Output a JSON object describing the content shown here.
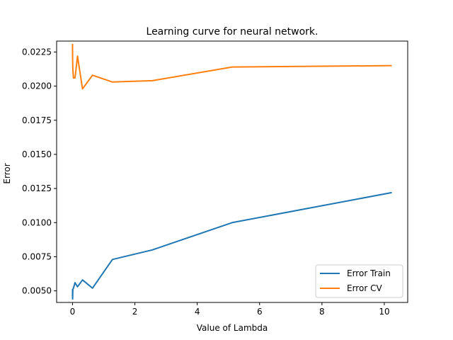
{
  "chart_data": {
    "type": "line",
    "title": "Learning curve for neural network.",
    "xlabel": "Value of Lambda",
    "ylabel": "Error",
    "xlim": [
      -0.51,
      10.75
    ],
    "ylim": [
      0.00415,
      0.0233
    ],
    "xticks": [
      0,
      2,
      4,
      6,
      8,
      10
    ],
    "xtick_labels": [
      "0",
      "2",
      "4",
      "6",
      "8",
      "10"
    ],
    "yticks": [
      0.005,
      0.0075,
      0.01,
      0.0125,
      0.015,
      0.0175,
      0.02,
      0.0225
    ],
    "ytick_labels": [
      "0.0050",
      "0.0075",
      "0.0100",
      "0.0125",
      "0.0150",
      "0.0175",
      "0.0200",
      "0.0225"
    ],
    "grid": false,
    "legend_position": "lower-right",
    "series": [
      {
        "name": "Error Train",
        "color": "#1f77b4",
        "x": [
          0,
          0.001,
          0.003,
          0.01,
          0.03,
          0.08,
          0.16,
          0.32,
          0.64,
          1.28,
          2.56,
          5.12,
          10.24
        ],
        "y": [
          0.0045,
          0.0051,
          0.0044,
          0.0051,
          0.0052,
          0.0056,
          0.0053,
          0.0058,
          0.0052,
          0.0073,
          0.008,
          0.01,
          0.0122
        ]
      },
      {
        "name": "Error CV",
        "color": "#ff7f0e",
        "x": [
          0,
          0.001,
          0.003,
          0.01,
          0.03,
          0.08,
          0.16,
          0.32,
          0.64,
          1.28,
          2.56,
          5.12,
          10.24
        ],
        "y": [
          0.0231,
          0.0226,
          0.0219,
          0.0213,
          0.0206,
          0.0206,
          0.0222,
          0.0198,
          0.0208,
          0.0203,
          0.0204,
          0.0214,
          0.0215
        ]
      }
    ]
  }
}
